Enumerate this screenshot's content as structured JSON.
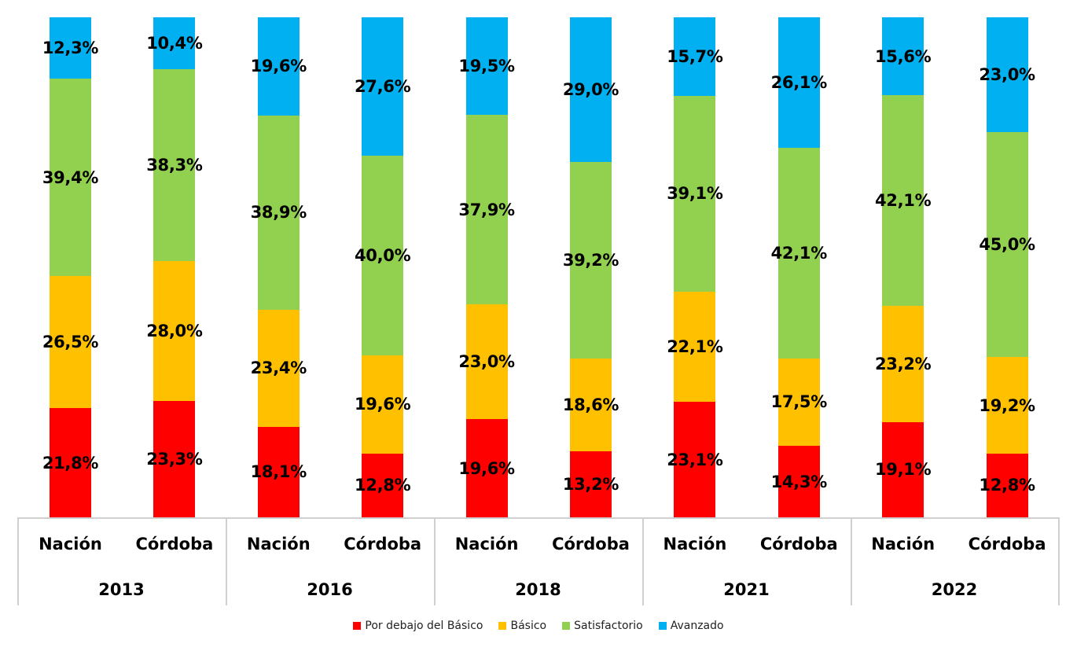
{
  "chart_data": {
    "type": "bar",
    "stacked": true,
    "normalized_percent": true,
    "title": "",
    "xlabel": "",
    "ylabel": "",
    "ylim": [
      0,
      100
    ],
    "grid": false,
    "legend_position": "bottom",
    "groups": [
      "2013",
      "2016",
      "2018",
      "2021",
      "2022"
    ],
    "categories": [
      "Nación",
      "Córdoba",
      "Nación",
      "Córdoba",
      "Nación",
      "Córdoba",
      "Nación",
      "Córdoba",
      "Nación",
      "Córdoba"
    ],
    "category_groups": [
      "2013",
      "2013",
      "2016",
      "2016",
      "2018",
      "2018",
      "2021",
      "2021",
      "2022",
      "2022"
    ],
    "series": [
      {
        "name": "Por debajo del Básico",
        "color": "#ff0000",
        "values": [
          21.8,
          23.3,
          18.1,
          12.8,
          19.6,
          13.2,
          23.1,
          14.3,
          19.1,
          12.8
        ],
        "labels": [
          "21,8%",
          "23,3%",
          "18,1%",
          "12,8%",
          "19,6%",
          "13,2%",
          "23,1%",
          "14,3%",
          "19,1%",
          "12,8%"
        ]
      },
      {
        "name": "Básico",
        "color": "#ffc000",
        "values": [
          26.5,
          28.0,
          23.4,
          19.6,
          23.0,
          18.6,
          22.1,
          17.5,
          23.2,
          19.2
        ],
        "labels": [
          "26,5%",
          "28,0%",
          "23,4%",
          "19,6%",
          "23,0%",
          "18,6%",
          "22,1%",
          "17,5%",
          "23,2%",
          "19,2%"
        ]
      },
      {
        "name": "Satisfactorio",
        "color": "#92d050",
        "values": [
          39.4,
          38.3,
          38.9,
          40.0,
          37.9,
          39.2,
          39.1,
          42.1,
          42.1,
          45.0
        ],
        "labels": [
          "39,4%",
          "38,3%",
          "38,9%",
          "40,0%",
          "37,9%",
          "39,2%",
          "39,1%",
          "42,1%",
          "42,1%",
          "45,0%"
        ]
      },
      {
        "name": "Avanzado",
        "color": "#00b0f0",
        "values": [
          12.3,
          10.4,
          19.6,
          27.6,
          19.5,
          29.0,
          15.7,
          26.1,
          15.6,
          23.0
        ],
        "labels": [
          "12,3%",
          "10,4%",
          "19,6%",
          "27,6%",
          "19,5%",
          "29,0%",
          "15,7%",
          "26,1%",
          "15,6%",
          "23,0%"
        ]
      }
    ]
  },
  "legend": {
    "items": [
      {
        "label": "Por debajo del Básico",
        "color": "#ff0000"
      },
      {
        "label": "Básico",
        "color": "#ffc000"
      },
      {
        "label": "Satisfactorio",
        "color": "#92d050"
      },
      {
        "label": "Avanzado",
        "color": "#00b0f0"
      }
    ]
  }
}
